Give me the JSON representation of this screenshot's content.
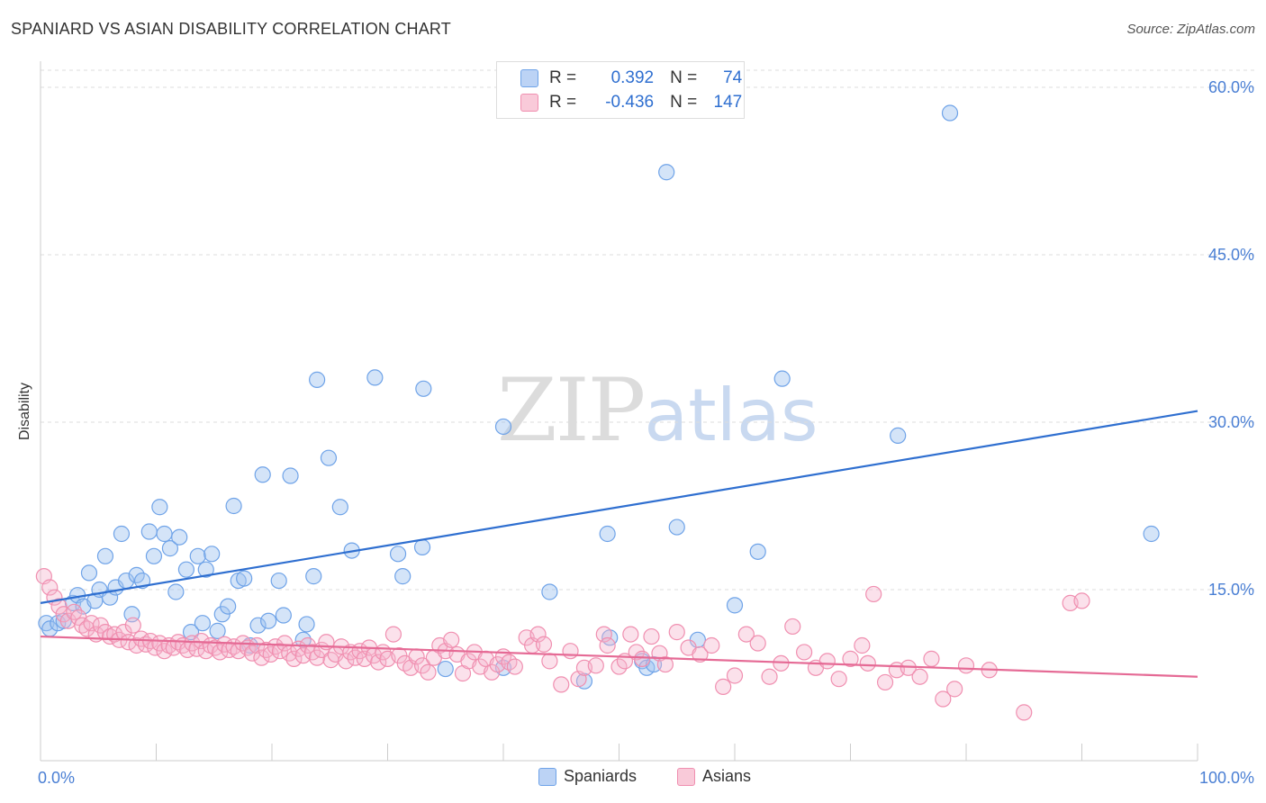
{
  "header": {
    "title": "SPANIARD VS ASIAN DISABILITY CORRELATION CHART",
    "source": "Source: ZipAtlas.com"
  },
  "watermark": {
    "part1": "ZIP",
    "part2": "atlas"
  },
  "legend_top": {
    "rows": [
      {
        "r_label": "R =",
        "r_value": "0.392",
        "n_label": "N =",
        "n_value": "74",
        "color": "#6fa3e8"
      },
      {
        "r_label": "R =",
        "r_value": "-0.436",
        "n_label": "N =",
        "n_value": "147",
        "color": "#f08fb0"
      }
    ]
  },
  "legend_bottom": [
    {
      "label": "Spaniards",
      "color": "#6fa3e8"
    },
    {
      "label": "Asians",
      "color": "#f08fb0"
    }
  ],
  "chart_data": {
    "type": "scatter",
    "title": "SPANIARD VS ASIAN DISABILITY CORRELATION CHART",
    "xlabel": "",
    "ylabel": "Disability",
    "xlim": [
      0,
      100
    ],
    "ylim": [
      0,
      60
    ],
    "x_tick_labels": [
      "0.0%",
      "100.0%"
    ],
    "y_ticks": [
      15,
      30,
      45,
      60
    ],
    "y_tick_labels": [
      "15.0%",
      "30.0%",
      "45.0%",
      "60.0%"
    ],
    "grid": "horizontal dashed",
    "legend": "top-center",
    "series": [
      {
        "name": "Spaniards",
        "color": "#6fa3e8",
        "line_color": "#2f6fd0",
        "trend": {
          "x": [
            0,
            100
          ],
          "y": [
            13.8,
            31.0
          ]
        },
        "points": [
          [
            0.5,
            12.0
          ],
          [
            0.8,
            11.5
          ],
          [
            1.5,
            12.0
          ],
          [
            2.0,
            12.2
          ],
          [
            2.8,
            13.8
          ],
          [
            3.2,
            14.5
          ],
          [
            3.7,
            13.5
          ],
          [
            4.2,
            16.5
          ],
          [
            4.7,
            14.0
          ],
          [
            5.1,
            15.0
          ],
          [
            5.6,
            18.0
          ],
          [
            6.0,
            14.3
          ],
          [
            6.5,
            15.2
          ],
          [
            7.0,
            20.0
          ],
          [
            7.4,
            15.8
          ],
          [
            7.9,
            12.8
          ],
          [
            8.3,
            16.3
          ],
          [
            8.8,
            15.8
          ],
          [
            9.4,
            20.2
          ],
          [
            9.8,
            18.0
          ],
          [
            10.3,
            22.4
          ],
          [
            10.7,
            20.0
          ],
          [
            11.2,
            18.7
          ],
          [
            11.7,
            14.8
          ],
          [
            12.0,
            19.7
          ],
          [
            12.6,
            16.8
          ],
          [
            13.0,
            11.2
          ],
          [
            13.6,
            18.0
          ],
          [
            14.0,
            12.0
          ],
          [
            14.3,
            16.8
          ],
          [
            14.8,
            18.2
          ],
          [
            15.3,
            11.3
          ],
          [
            15.7,
            12.8
          ],
          [
            16.2,
            13.5
          ],
          [
            16.7,
            22.5
          ],
          [
            17.1,
            15.8
          ],
          [
            17.6,
            16.0
          ],
          [
            18.1,
            10.0
          ],
          [
            18.8,
            11.8
          ],
          [
            19.2,
            25.3
          ],
          [
            19.7,
            12.2
          ],
          [
            20.6,
            15.8
          ],
          [
            21.0,
            12.7
          ],
          [
            21.6,
            25.2
          ],
          [
            22.7,
            10.5
          ],
          [
            23.0,
            11.9
          ],
          [
            23.6,
            16.2
          ],
          [
            23.9,
            33.8
          ],
          [
            24.9,
            26.8
          ],
          [
            25.9,
            22.4
          ],
          [
            26.9,
            18.5
          ],
          [
            28.9,
            34.0
          ],
          [
            30.9,
            18.2
          ],
          [
            31.3,
            16.2
          ],
          [
            33.0,
            18.8
          ],
          [
            33.1,
            33.0
          ],
          [
            35.0,
            7.9
          ],
          [
            40.0,
            29.6
          ],
          [
            40.0,
            8.0
          ],
          [
            44.0,
            14.8
          ],
          [
            47.0,
            6.8
          ],
          [
            49.0,
            20.0
          ],
          [
            49.2,
            10.7
          ],
          [
            52.0,
            8.6
          ],
          [
            52.4,
            8.0
          ],
          [
            53.0,
            8.3
          ],
          [
            54.1,
            52.4
          ],
          [
            55.0,
            20.6
          ],
          [
            56.8,
            10.5
          ],
          [
            60.0,
            13.6
          ],
          [
            62.0,
            18.4
          ],
          [
            64.1,
            33.9
          ],
          [
            74.1,
            28.8
          ],
          [
            78.6,
            57.7
          ],
          [
            96.0,
            20.0
          ]
        ]
      },
      {
        "name": "Asians",
        "color": "#f08fb0",
        "line_color": "#e56a95",
        "trend": {
          "x": [
            0,
            100
          ],
          "y": [
            10.8,
            7.2
          ]
        },
        "points": [
          [
            0.3,
            16.2
          ],
          [
            0.8,
            15.2
          ],
          [
            1.2,
            14.3
          ],
          [
            1.6,
            13.5
          ],
          [
            2.0,
            12.8
          ],
          [
            2.4,
            12.2
          ],
          [
            2.9,
            13.0
          ],
          [
            3.3,
            12.5
          ],
          [
            3.6,
            11.8
          ],
          [
            4.0,
            11.5
          ],
          [
            4.4,
            12.0
          ],
          [
            4.8,
            11.0
          ],
          [
            5.2,
            11.8
          ],
          [
            5.6,
            11.2
          ],
          [
            6.0,
            10.8
          ],
          [
            6.4,
            11.0
          ],
          [
            6.8,
            10.5
          ],
          [
            7.2,
            11.2
          ],
          [
            7.6,
            10.3
          ],
          [
            8.0,
            11.8
          ],
          [
            8.3,
            10.0
          ],
          [
            8.7,
            10.6
          ],
          [
            9.1,
            10.1
          ],
          [
            9.5,
            10.4
          ],
          [
            9.9,
            9.8
          ],
          [
            10.3,
            10.2
          ],
          [
            10.7,
            9.5
          ],
          [
            11.1,
            10.0
          ],
          [
            11.5,
            9.8
          ],
          [
            11.9,
            10.3
          ],
          [
            12.3,
            10.0
          ],
          [
            12.7,
            9.6
          ],
          [
            13.1,
            10.2
          ],
          [
            13.5,
            9.7
          ],
          [
            13.9,
            10.4
          ],
          [
            14.3,
            9.5
          ],
          [
            14.7,
            10.0
          ],
          [
            15.1,
            9.8
          ],
          [
            15.5,
            9.4
          ],
          [
            15.9,
            10.1
          ],
          [
            16.3,
            9.6
          ],
          [
            16.7,
            9.9
          ],
          [
            17.1,
            9.5
          ],
          [
            17.5,
            10.2
          ],
          [
            17.9,
            9.8
          ],
          [
            18.3,
            9.3
          ],
          [
            18.7,
            10.0
          ],
          [
            19.1,
            8.9
          ],
          [
            19.5,
            9.6
          ],
          [
            19.9,
            9.2
          ],
          [
            20.3,
            9.9
          ],
          [
            20.7,
            9.5
          ],
          [
            21.1,
            10.2
          ],
          [
            21.5,
            9.3
          ],
          [
            21.9,
            8.8
          ],
          [
            22.3,
            9.7
          ],
          [
            22.7,
            9.1
          ],
          [
            23.1,
            10.0
          ],
          [
            23.5,
            9.4
          ],
          [
            23.9,
            8.9
          ],
          [
            24.3,
            9.6
          ],
          [
            24.7,
            10.3
          ],
          [
            25.1,
            8.7
          ],
          [
            25.5,
            9.2
          ],
          [
            26.0,
            9.9
          ],
          [
            26.4,
            8.6
          ],
          [
            26.8,
            9.4
          ],
          [
            27.2,
            8.9
          ],
          [
            27.6,
            9.5
          ],
          [
            28.0,
            8.8
          ],
          [
            28.4,
            9.8
          ],
          [
            28.8,
            9.1
          ],
          [
            29.2,
            8.5
          ],
          [
            29.6,
            9.4
          ],
          [
            30.0,
            8.8
          ],
          [
            30.5,
            11.0
          ],
          [
            31.0,
            9.1
          ],
          [
            31.5,
            8.4
          ],
          [
            32.0,
            8.0
          ],
          [
            32.5,
            9.0
          ],
          [
            33.0,
            8.2
          ],
          [
            33.5,
            7.6
          ],
          [
            34.0,
            8.9
          ],
          [
            34.5,
            10.0
          ],
          [
            35.0,
            9.5
          ],
          [
            35.5,
            10.5
          ],
          [
            36.0,
            9.2
          ],
          [
            36.5,
            7.5
          ],
          [
            37.0,
            8.6
          ],
          [
            37.5,
            9.4
          ],
          [
            38.0,
            8.1
          ],
          [
            38.5,
            8.8
          ],
          [
            39.0,
            7.6
          ],
          [
            39.5,
            8.3
          ],
          [
            40.0,
            9.0
          ],
          [
            40.5,
            8.5
          ],
          [
            41.0,
            8.1
          ],
          [
            42.0,
            10.7
          ],
          [
            42.5,
            10.0
          ],
          [
            43.0,
            11.0
          ],
          [
            43.5,
            10.1
          ],
          [
            44.0,
            8.6
          ],
          [
            45.0,
            6.5
          ],
          [
            45.8,
            9.5
          ],
          [
            46.5,
            7.0
          ],
          [
            47.0,
            8.0
          ],
          [
            48.0,
            8.2
          ],
          [
            48.7,
            11.0
          ],
          [
            49.0,
            10.0
          ],
          [
            50.0,
            8.1
          ],
          [
            50.5,
            8.6
          ],
          [
            51.0,
            11.0
          ],
          [
            51.5,
            9.4
          ],
          [
            52.0,
            8.8
          ],
          [
            52.8,
            10.8
          ],
          [
            53.5,
            9.3
          ],
          [
            54.0,
            8.3
          ],
          [
            55.0,
            11.2
          ],
          [
            56.0,
            9.8
          ],
          [
            57.0,
            9.2
          ],
          [
            58.0,
            10.0
          ],
          [
            59.0,
            6.3
          ],
          [
            60.0,
            7.3
          ],
          [
            61.0,
            11.0
          ],
          [
            62.0,
            10.2
          ],
          [
            63.0,
            7.2
          ],
          [
            64.0,
            8.4
          ],
          [
            65.0,
            11.7
          ],
          [
            66.0,
            9.4
          ],
          [
            67.0,
            8.0
          ],
          [
            68.0,
            8.6
          ],
          [
            69.0,
            7.0
          ],
          [
            70.0,
            8.8
          ],
          [
            71.0,
            10.0
          ],
          [
            71.5,
            8.4
          ],
          [
            72.0,
            14.6
          ],
          [
            73.0,
            6.7
          ],
          [
            74.0,
            7.8
          ],
          [
            75.0,
            8.0
          ],
          [
            76.0,
            7.2
          ],
          [
            77.0,
            8.8
          ],
          [
            78.0,
            5.2
          ],
          [
            79.0,
            6.1
          ],
          [
            80.0,
            8.2
          ],
          [
            82.0,
            7.8
          ],
          [
            85.0,
            4.0
          ],
          [
            89.0,
            13.8
          ],
          [
            90.0,
            14.0
          ]
        ]
      }
    ]
  }
}
